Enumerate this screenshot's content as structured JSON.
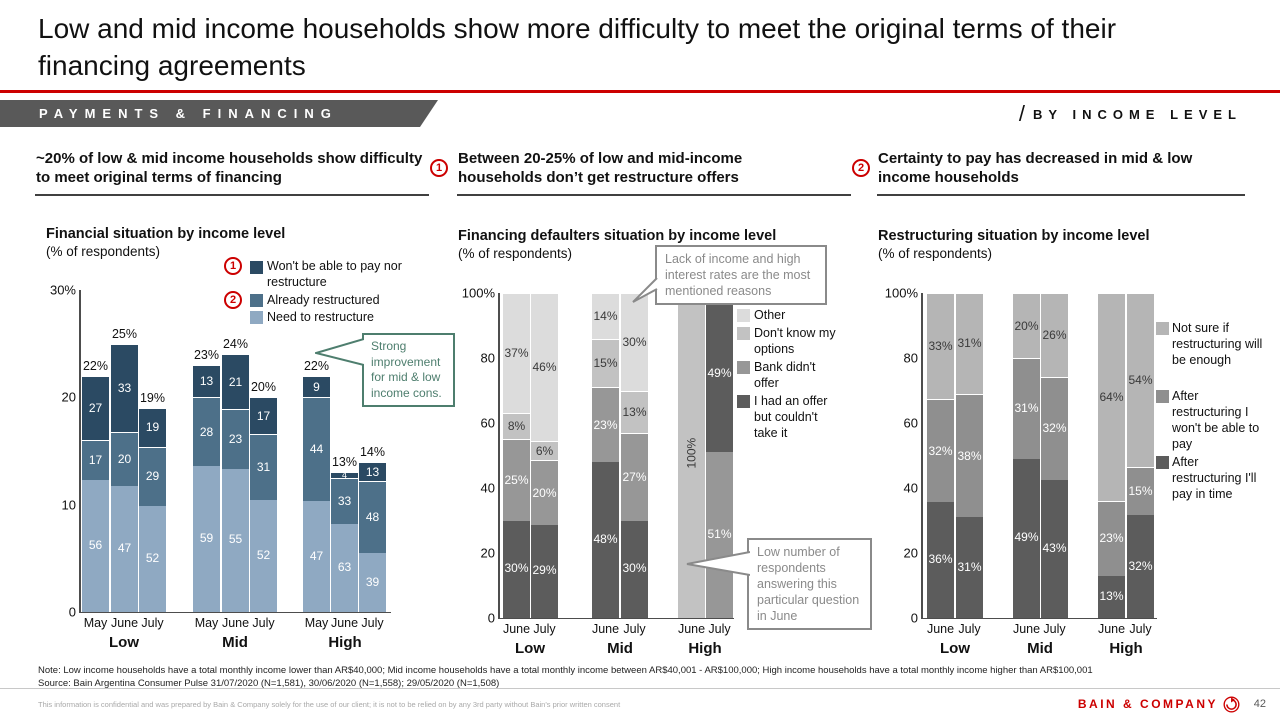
{
  "slide": {
    "title": "Low and mid income households show more difficulty to meet the original terms of their financing agreements",
    "section_tag": "PAYMENTS & FINANCING",
    "right_tag": "BY INCOME LEVEL",
    "note": "Note: Low income households have a total monthly income lower than AR$40,000; Mid income households have a total monthly income between AR$40,001 - AR$100,000; High income households have a total monthly income higher than AR$100,001",
    "source": "Source: Bain Argentina Consumer Pulse 31/07/2020 (N=1,581), 30/06/2020 (N=1,558); 29/05/2020 (N=1,508)",
    "footer": "This information is confidential and was prepared by Bain & Company solely for the use of our client; it is not to be relied on by any 3rd party without Bain's prior written consent",
    "brand": "BAIN & COMPANY",
    "page_number": "42"
  },
  "claims": [
    {
      "text": "~20% of low & mid income households show difficulty to meet original terms of financing"
    },
    {
      "badge": "1",
      "text": "Between 20-25% of low and mid-income households don’t get restructure offers"
    },
    {
      "badge": "2",
      "text": "Certainty to pay has decreased in mid & low income households"
    }
  ],
  "callouts": {
    "improvement": "Strong improvement for mid & low income cons.",
    "reasons": "Lack of income and high interest rates are the most mentioned reasons",
    "low_n": "Low number of respondents answering this particular question in June"
  },
  "colors": {
    "accent_red": "#cc0000",
    "banner_gray": "#595959",
    "callout_green": "#4e7e6e",
    "callout_gray": "#8a8a8a",
    "dark_label": "#3a3a3a",
    "series": {
      "wont": {
        "hex": "#2b4a63",
        "label": "light"
      },
      "already": {
        "hex": "#4d7089",
        "label": "light"
      },
      "need": {
        "hex": "#8fa9c2",
        "label": "light"
      },
      "offer": {
        "hex": "#5c5c5c",
        "label": "light"
      },
      "bank": {
        "hex": "#979797",
        "label": "light"
      },
      "dontknow": {
        "hex": "#c2c2c2",
        "label": "dark"
      },
      "other": {
        "hex": "#dcdcdc",
        "label": "dark"
      },
      "pay": {
        "hex": "#5c5c5c",
        "label": "light"
      },
      "wontpay": {
        "hex": "#8f8f8f",
        "label": "light"
      },
      "notsure": {
        "hex": "#b5b5b5",
        "label": "dark"
      }
    }
  },
  "chart_data": [
    {
      "type": "bar",
      "variant": "stacked",
      "title": "Financial situation by income level",
      "subtitle": "(% of respondents)",
      "ylabel": "% of respondents",
      "ymax": 30,
      "yticks": [
        "30%",
        "20",
        "10",
        "0"
      ],
      "grid": false,
      "value_suffix": "",
      "groups": [
        "Low",
        "Mid",
        "High"
      ],
      "legend_position": "top-right",
      "legend": [
        {
          "key": "wont",
          "badge": "1",
          "label": "Won't be able to pay nor restructure"
        },
        {
          "key": "already",
          "badge": "2",
          "label": "Already restructured"
        },
        {
          "key": "need",
          "label": "Need to restructure"
        }
      ],
      "bars": [
        {
          "group": "Low",
          "month": "May",
          "total": 22,
          "total_label": "22%",
          "segments": [
            {
              "key": "need",
              "value": 56
            },
            {
              "key": "already",
              "value": 17
            },
            {
              "key": "wont",
              "value": 27
            }
          ]
        },
        {
          "group": "Low",
          "month": "June",
          "total": 25,
          "total_label": "25%",
          "segments": [
            {
              "key": "need",
              "value": 47
            },
            {
              "key": "already",
              "value": 20
            },
            {
              "key": "wont",
              "value": 33
            }
          ]
        },
        {
          "group": "Low",
          "month": "July",
          "total": 19,
          "total_label": "19%",
          "segments": [
            {
              "key": "need",
              "value": 52
            },
            {
              "key": "already",
              "value": 29
            },
            {
              "key": "wont",
              "value": 19
            }
          ]
        },
        {
          "group": "Mid",
          "month": "May",
          "total": 23,
          "total_label": "23%",
          "segments": [
            {
              "key": "need",
              "value": 59
            },
            {
              "key": "already",
              "value": 28
            },
            {
              "key": "wont",
              "value": 13
            }
          ]
        },
        {
          "group": "Mid",
          "month": "June",
          "total": 24,
          "total_label": "24%",
          "segments": [
            {
              "key": "need",
              "value": 55
            },
            {
              "key": "already",
              "value": 23
            },
            {
              "key": "wont",
              "value": 21
            }
          ]
        },
        {
          "group": "Mid",
          "month": "July",
          "total": 20,
          "total_label": "20%",
          "segments": [
            {
              "key": "need",
              "value": 52
            },
            {
              "key": "already",
              "value": 31
            },
            {
              "key": "wont",
              "value": 17
            }
          ]
        },
        {
          "group": "High",
          "month": "May",
          "total": 22,
          "total_label": "22%",
          "segments": [
            {
              "key": "need",
              "value": 47
            },
            {
              "key": "already",
              "value": 44
            },
            {
              "key": "wont",
              "value": 9
            }
          ]
        },
        {
          "group": "High",
          "month": "June",
          "total": 13,
          "total_label": "13%",
          "segments": [
            {
              "key": "need",
              "value": 63
            },
            {
              "key": "already",
              "value": 33
            },
            {
              "key": "wont",
              "value": 4
            }
          ]
        },
        {
          "group": "High",
          "month": "July",
          "total": 14,
          "total_label": "14%",
          "segments": [
            {
              "key": "need",
              "value": 39
            },
            {
              "key": "already",
              "value": 48
            },
            {
              "key": "wont",
              "value": 13
            }
          ]
        }
      ]
    },
    {
      "type": "bar",
      "variant": "stacked-100",
      "title": "Financing defaulters situation by income level",
      "subtitle": "(% of respondents)",
      "ylabel": "% of respondents",
      "ymax": 100,
      "yticks": [
        "100%",
        "80",
        "60",
        "40",
        "20",
        "0"
      ],
      "grid": false,
      "value_suffix": "%",
      "groups": [
        "Low",
        "Mid",
        "High"
      ],
      "legend_position": "right",
      "legend": [
        {
          "key": "other",
          "label": "Other"
        },
        {
          "key": "dontknow",
          "label": "Don't know my options"
        },
        {
          "key": "bank",
          "label": "Bank didn't offer"
        },
        {
          "key": "offer",
          "label": "I had an offer but couldn't take it"
        }
      ],
      "bars": [
        {
          "group": "Low",
          "month": "June",
          "segments": [
            {
              "key": "offer",
              "value": 30
            },
            {
              "key": "bank",
              "value": 25
            },
            {
              "key": "dontknow",
              "value": 8
            },
            {
              "key": "other",
              "value": 37
            }
          ]
        },
        {
          "group": "Low",
          "month": "July",
          "segments": [
            {
              "key": "offer",
              "value": 29
            },
            {
              "key": "bank",
              "value": 20
            },
            {
              "key": "dontknow",
              "value": 6
            },
            {
              "key": "other",
              "value": 46
            }
          ]
        },
        {
          "group": "Mid",
          "month": "June",
          "segments": [
            {
              "key": "offer",
              "value": 48
            },
            {
              "key": "bank",
              "value": 23
            },
            {
              "key": "dontknow",
              "value": 15
            },
            {
              "key": "other",
              "value": 14
            }
          ]
        },
        {
          "group": "Mid",
          "month": "July",
          "segments": [
            {
              "key": "offer",
              "value": 30
            },
            {
              "key": "bank",
              "value": 27
            },
            {
              "key": "dontknow",
              "value": 13
            },
            {
              "key": "other",
              "value": 30
            }
          ]
        },
        {
          "group": "High",
          "month": "June",
          "segments": [
            {
              "key": "dontknow",
              "value": 100,
              "rotate": true
            }
          ]
        },
        {
          "group": "High",
          "month": "July",
          "segments": [
            {
              "key": "bank",
              "value": 51
            },
            {
              "key": "offer",
              "value": 49
            }
          ]
        }
      ]
    },
    {
      "type": "bar",
      "variant": "stacked-100",
      "title": "Restructuring situation by income level",
      "subtitle": "(% of respondents)",
      "ylabel": "% of respondents",
      "ymax": 100,
      "yticks": [
        "100%",
        "80",
        "60",
        "40",
        "20",
        "0"
      ],
      "grid": false,
      "value_suffix": "%",
      "groups": [
        "Low",
        "Mid",
        "High"
      ],
      "legend_position": "right",
      "legend": [
        {
          "key": "notsure",
          "label": "Not sure if restructuring will be enough"
        },
        {
          "key": "wontpay",
          "label": "After restructuring I won't be able to pay"
        },
        {
          "key": "pay",
          "label": "After restructuring I'll pay in time"
        }
      ],
      "bars": [
        {
          "group": "Low",
          "month": "June",
          "segments": [
            {
              "key": "pay",
              "value": 36
            },
            {
              "key": "wontpay",
              "value": 32
            },
            {
              "key": "notsure",
              "value": 33
            }
          ]
        },
        {
          "group": "Low",
          "month": "July",
          "segments": [
            {
              "key": "pay",
              "value": 31
            },
            {
              "key": "wontpay",
              "value": 38
            },
            {
              "key": "notsure",
              "value": 31
            }
          ]
        },
        {
          "group": "Mid",
          "month": "June",
          "segments": [
            {
              "key": "pay",
              "value": 49
            },
            {
              "key": "wontpay",
              "value": 31
            },
            {
              "key": "notsure",
              "value": 20
            }
          ]
        },
        {
          "group": "Mid",
          "month": "July",
          "segments": [
            {
              "key": "pay",
              "value": 43
            },
            {
              "key": "wontpay",
              "value": 32
            },
            {
              "key": "notsure",
              "value": 26
            }
          ]
        },
        {
          "group": "High",
          "month": "June",
          "segments": [
            {
              "key": "pay",
              "value": 13
            },
            {
              "key": "wontpay",
              "value": 23
            },
            {
              "key": "notsure",
              "value": 64
            }
          ]
        },
        {
          "group": "High",
          "month": "July",
          "segments": [
            {
              "key": "pay",
              "value": 32
            },
            {
              "key": "wontpay",
              "value": 15
            },
            {
              "key": "notsure",
              "value": 54
            }
          ]
        }
      ]
    }
  ]
}
